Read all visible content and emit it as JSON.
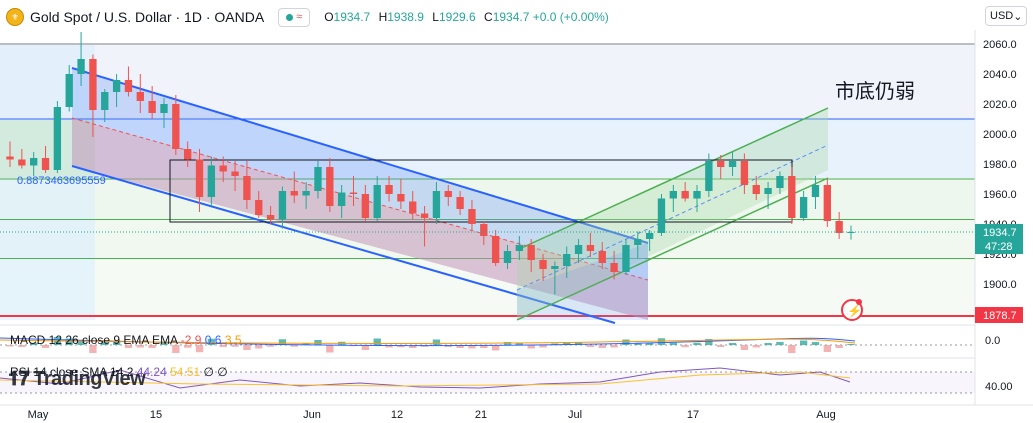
{
  "header": {
    "title": "Gold Spot / U.S. Dollar · 1D · OANDA",
    "ohlc": [
      {
        "k": "O",
        "v": "1934.7"
      },
      {
        "k": "H",
        "v": "1938.9"
      },
      {
        "k": "L",
        "v": "1929.6"
      },
      {
        "k": "C",
        "v": "1934.7 +0.0 (+0.00%)"
      }
    ]
  },
  "currency_label": "USD",
  "annotation_text": "市底仍弱",
  "fib_label": "0.8873463695559",
  "indicators": {
    "macd_label": "MACD 12 26 close 9 EMA EMA",
    "macd_values": [
      "-2.9",
      "0.6",
      "3.5"
    ],
    "rsi_label": "RSI 14 close SMA 14 2",
    "rsi_values": [
      "44.24",
      "54.51",
      "∅",
      "∅"
    ]
  },
  "watermark": "TradingView",
  "price_badges": {
    "current": "1934.7",
    "countdown": "47:28",
    "level": "1878.7"
  },
  "colors": {
    "up": "#26a69a",
    "down": "#ef5350",
    "channel": "#2962ff",
    "green_channel": "#4caf50",
    "level_line": "#f23645"
  },
  "chart_data": {
    "type": "candlestick",
    "symbol": "XAUUSD",
    "timeframe": "1D",
    "ylim": [
      1870,
      2070
    ],
    "y_ticks": [
      1900,
      1920,
      1940,
      1960,
      1980,
      2000,
      2020,
      2040,
      2060
    ],
    "x_ticks": [
      "May",
      "15",
      "Jun",
      "12",
      "21",
      "Jul",
      "17",
      "Aug"
    ],
    "macd_ticks": [
      "0.0"
    ],
    "rsi_ticks": [
      "40.00"
    ],
    "candles": [
      {
        "o": 1985,
        "h": 1995,
        "l": 1978,
        "c": 1983
      },
      {
        "o": 1983,
        "h": 1990,
        "l": 1977,
        "c": 1979
      },
      {
        "o": 1979,
        "h": 1988,
        "l": 1972,
        "c": 1984
      },
      {
        "o": 1984,
        "h": 1992,
        "l": 1974,
        "c": 1976
      },
      {
        "o": 1976,
        "h": 2022,
        "l": 1974,
        "c": 2018
      },
      {
        "o": 2018,
        "h": 2046,
        "l": 2015,
        "c": 2040
      },
      {
        "o": 2040,
        "h": 2068,
        "l": 2032,
        "c": 2050
      },
      {
        "o": 2050,
        "h": 2053,
        "l": 1998,
        "c": 2016
      },
      {
        "o": 2016,
        "h": 2030,
        "l": 2008,
        "c": 2028
      },
      {
        "o": 2028,
        "h": 2040,
        "l": 2018,
        "c": 2036
      },
      {
        "o": 2036,
        "h": 2045,
        "l": 2025,
        "c": 2028
      },
      {
        "o": 2028,
        "h": 2040,
        "l": 2014,
        "c": 2022
      },
      {
        "o": 2022,
        "h": 2032,
        "l": 2010,
        "c": 2014
      },
      {
        "o": 2014,
        "h": 2024,
        "l": 2004,
        "c": 2020
      },
      {
        "o": 2020,
        "h": 2026,
        "l": 1986,
        "c": 1990
      },
      {
        "o": 1990,
        "h": 1995,
        "l": 1978,
        "c": 1983
      },
      {
        "o": 1983,
        "h": 1990,
        "l": 1948,
        "c": 1958
      },
      {
        "o": 1958,
        "h": 1985,
        "l": 1952,
        "c": 1979
      },
      {
        "o": 1979,
        "h": 1985,
        "l": 1968,
        "c": 1975
      },
      {
        "o": 1975,
        "h": 1982,
        "l": 1962,
        "c": 1972
      },
      {
        "o": 1972,
        "h": 1982,
        "l": 1950,
        "c": 1956
      },
      {
        "o": 1956,
        "h": 1962,
        "l": 1944,
        "c": 1946
      },
      {
        "o": 1946,
        "h": 1952,
        "l": 1940,
        "c": 1943
      },
      {
        "o": 1943,
        "h": 1965,
        "l": 1937,
        "c": 1962
      },
      {
        "o": 1962,
        "h": 1975,
        "l": 1954,
        "c": 1959
      },
      {
        "o": 1959,
        "h": 1968,
        "l": 1950,
        "c": 1962
      },
      {
        "o": 1962,
        "h": 1982,
        "l": 1957,
        "c": 1978
      },
      {
        "o": 1978,
        "h": 1984,
        "l": 1948,
        "c": 1952
      },
      {
        "o": 1952,
        "h": 1966,
        "l": 1944,
        "c": 1961
      },
      {
        "o": 1961,
        "h": 1972,
        "l": 1952,
        "c": 1960
      },
      {
        "o": 1960,
        "h": 1966,
        "l": 1942,
        "c": 1944
      },
      {
        "o": 1944,
        "h": 1972,
        "l": 1942,
        "c": 1966
      },
      {
        "o": 1966,
        "h": 1972,
        "l": 1955,
        "c": 1960
      },
      {
        "o": 1960,
        "h": 1970,
        "l": 1950,
        "c": 1955
      },
      {
        "o": 1955,
        "h": 1962,
        "l": 1943,
        "c": 1947
      },
      {
        "o": 1947,
        "h": 1952,
        "l": 1925,
        "c": 1944
      },
      {
        "o": 1944,
        "h": 1968,
        "l": 1940,
        "c": 1962
      },
      {
        "o": 1962,
        "h": 1966,
        "l": 1952,
        "c": 1958
      },
      {
        "o": 1958,
        "h": 1962,
        "l": 1946,
        "c": 1950
      },
      {
        "o": 1950,
        "h": 1956,
        "l": 1936,
        "c": 1940
      },
      {
        "o": 1940,
        "h": 1942,
        "l": 1926,
        "c": 1932
      },
      {
        "o": 1932,
        "h": 1936,
        "l": 1912,
        "c": 1914
      },
      {
        "o": 1914,
        "h": 1926,
        "l": 1910,
        "c": 1922
      },
      {
        "o": 1922,
        "h": 1932,
        "l": 1916,
        "c": 1926
      },
      {
        "o": 1926,
        "h": 1930,
        "l": 1908,
        "c": 1916
      },
      {
        "o": 1916,
        "h": 1920,
        "l": 1902,
        "c": 1910
      },
      {
        "o": 1910,
        "h": 1915,
        "l": 1893,
        "c": 1912
      },
      {
        "o": 1912,
        "h": 1925,
        "l": 1904,
        "c": 1920
      },
      {
        "o": 1920,
        "h": 1930,
        "l": 1914,
        "c": 1926
      },
      {
        "o": 1926,
        "h": 1934,
        "l": 1918,
        "c": 1922
      },
      {
        "o": 1922,
        "h": 1928,
        "l": 1910,
        "c": 1914
      },
      {
        "o": 1914,
        "h": 1922,
        "l": 1903,
        "c": 1908
      },
      {
        "o": 1908,
        "h": 1930,
        "l": 1906,
        "c": 1926
      },
      {
        "o": 1926,
        "h": 1935,
        "l": 1917,
        "c": 1930
      },
      {
        "o": 1930,
        "h": 1936,
        "l": 1922,
        "c": 1934
      },
      {
        "o": 1934,
        "h": 1960,
        "l": 1932,
        "c": 1957
      },
      {
        "o": 1957,
        "h": 1966,
        "l": 1948,
        "c": 1962
      },
      {
        "o": 1962,
        "h": 1968,
        "l": 1955,
        "c": 1957
      },
      {
        "o": 1957,
        "h": 1966,
        "l": 1948,
        "c": 1962
      },
      {
        "o": 1962,
        "h": 1987,
        "l": 1958,
        "c": 1982
      },
      {
        "o": 1982,
        "h": 1986,
        "l": 1970,
        "c": 1978
      },
      {
        "o": 1978,
        "h": 1988,
        "l": 1972,
        "c": 1982
      },
      {
        "o": 1982,
        "h": 1987,
        "l": 1960,
        "c": 1966
      },
      {
        "o": 1966,
        "h": 1972,
        "l": 1956,
        "c": 1960
      },
      {
        "o": 1960,
        "h": 1968,
        "l": 1950,
        "c": 1964
      },
      {
        "o": 1964,
        "h": 1975,
        "l": 1960,
        "c": 1972
      },
      {
        "o": 1972,
        "h": 1978,
        "l": 1940,
        "c": 1944
      },
      {
        "o": 1944,
        "h": 1962,
        "l": 1942,
        "c": 1958
      },
      {
        "o": 1958,
        "h": 1972,
        "l": 1950,
        "c": 1966
      },
      {
        "o": 1966,
        "h": 1970,
        "l": 1938,
        "c": 1942
      },
      {
        "o": 1942,
        "h": 1948,
        "l": 1930,
        "c": 1934
      },
      {
        "o": 1934.7,
        "h": 1938.9,
        "l": 1929.6,
        "c": 1934.7
      }
    ],
    "annotations": {
      "horizontal_levels": [
        2060,
        2010,
        1970,
        1943,
        1917,
        1878.7
      ],
      "fib_level": 1970
    }
  }
}
